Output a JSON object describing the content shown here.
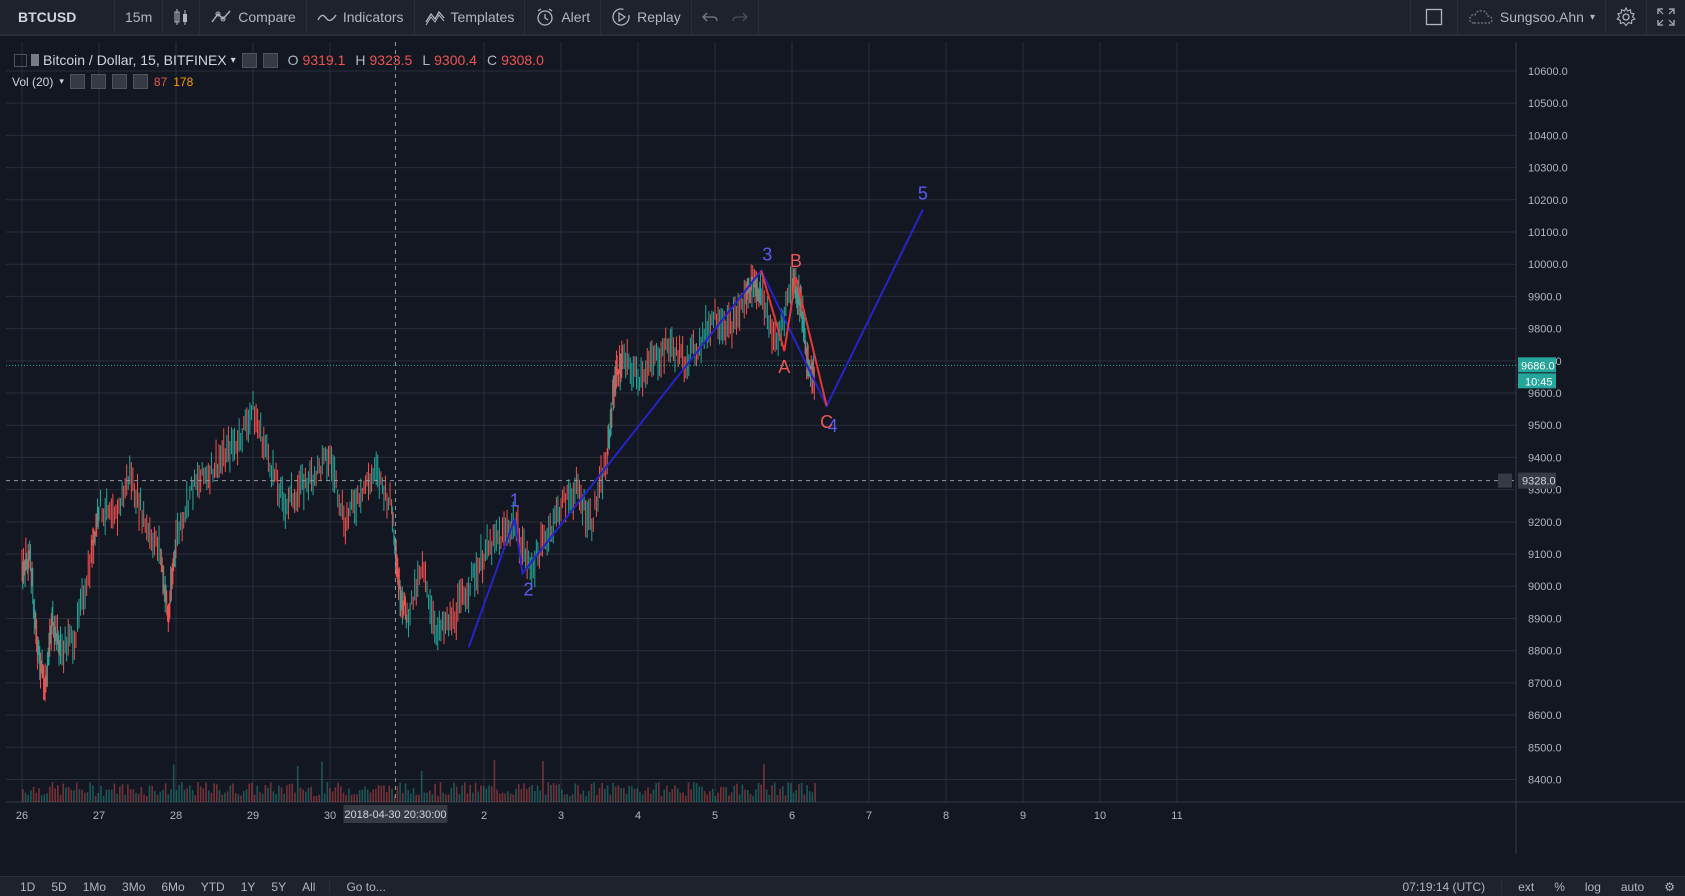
{
  "toolbar": {
    "symbol": "BTCUSD",
    "interval": "15m",
    "compare": "Compare",
    "indicators": "Indicators",
    "templates": "Templates",
    "alert": "Alert",
    "replay": "Replay",
    "user": "Sungsoo.Ahn"
  },
  "legend": {
    "title": "Bitcoin / Dollar, 15, BITFINEX",
    "o_label": "O",
    "o_value": "9319.1",
    "h_label": "H",
    "h_value": "9323.5",
    "l_label": "L",
    "l_value": "9300.4",
    "c_label": "C",
    "c_value": "9308.0"
  },
  "volume": {
    "label": "Vol (20)",
    "value": "87",
    "ma": "178"
  },
  "chart_data": {
    "type": "line",
    "price_ticks": [
      "10600.0",
      "10500.0",
      "10400.0",
      "10300.0",
      "10200.0",
      "10100.0",
      "10000.0",
      "9900.0",
      "9800.0",
      "9700.0",
      "9600.0",
      "9500.0",
      "9400.0",
      "9300.0",
      "9200.0",
      "9100.0",
      "9000.0",
      "8900.0",
      "8800.0",
      "8700.0",
      "8600.0",
      "8500.0",
      "8400.0"
    ],
    "date_ticks": [
      "26",
      "27",
      "28",
      "29",
      "30",
      "2",
      "3",
      "4",
      "5",
      "6",
      "7",
      "8",
      "9",
      "10",
      "11"
    ],
    "crosshair_date": "2018-04-30 20:30:00",
    "last_price": "9686.0",
    "countdown": "10:45",
    "crosshair_price": "9328.0",
    "price_path": [
      [
        26,
        9050
      ],
      [
        26.1,
        9100
      ],
      [
        26.2,
        8800
      ],
      [
        26.3,
        8700
      ],
      [
        26.4,
        8900
      ],
      [
        26.5,
        8800
      ],
      [
        26.7,
        8850
      ],
      [
        26.9,
        9100
      ],
      [
        27.0,
        9250
      ],
      [
        27.2,
        9200
      ],
      [
        27.4,
        9350
      ],
      [
        27.6,
        9200
      ],
      [
        27.8,
        9100
      ],
      [
        27.9,
        8900
      ],
      [
        28.0,
        9150
      ],
      [
        28.2,
        9300
      ],
      [
        28.4,
        9350
      ],
      [
        28.6,
        9400
      ],
      [
        28.8,
        9450
      ],
      [
        29.0,
        9550
      ],
      [
        29.2,
        9400
      ],
      [
        29.4,
        9250
      ],
      [
        29.6,
        9300
      ],
      [
        29.8,
        9350
      ],
      [
        30.0,
        9400
      ],
      [
        30.2,
        9200
      ],
      [
        30.4,
        9300
      ],
      [
        30.6,
        9350
      ],
      [
        30.8,
        9250
      ],
      [
        30.9,
        9000
      ],
      [
        31.0,
        8900
      ],
      [
        31.2,
        9050
      ],
      [
        31.4,
        8850
      ],
      [
        31.6,
        8900
      ],
      [
        31.8,
        9000
      ],
      [
        32.0,
        9100
      ],
      [
        32.2,
        9150
      ],
      [
        32.4,
        9200
      ],
      [
        32.6,
        9050
      ],
      [
        32.8,
        9150
      ],
      [
        33.0,
        9250
      ],
      [
        33.2,
        9300
      ],
      [
        33.4,
        9200
      ],
      [
        33.6,
        9400
      ],
      [
        33.7,
        9650
      ],
      [
        33.8,
        9700
      ],
      [
        34.0,
        9650
      ],
      [
        34.2,
        9700
      ],
      [
        34.4,
        9750
      ],
      [
        34.6,
        9700
      ],
      [
        34.8,
        9750
      ],
      [
        35.0,
        9850
      ],
      [
        35.2,
        9800
      ],
      [
        35.4,
        9900
      ],
      [
        35.5,
        9950
      ],
      [
        35.6,
        9900
      ],
      [
        35.8,
        9750
      ],
      [
        36.0,
        9950
      ],
      [
        36.1,
        9900
      ],
      [
        36.2,
        9700
      ],
      [
        36.3,
        9650
      ]
    ],
    "series": [
      {
        "color": "#2424c8",
        "labels": [
          "1",
          "2",
          "3",
          "4",
          "5"
        ],
        "points": [
          [
            31.8,
            8810
          ],
          [
            32.4,
            9210
          ],
          [
            32.5,
            9040
          ],
          [
            35.6,
            9980
          ],
          [
            36.45,
            9560
          ],
          [
            37.7,
            10170
          ]
        ]
      },
      {
        "color": "#e53935",
        "labels": [
          "A",
          "B",
          "C"
        ],
        "points": [
          [
            35.6,
            9980
          ],
          [
            35.9,
            9730
          ],
          [
            36.05,
            9960
          ],
          [
            36.45,
            9560
          ]
        ]
      }
    ],
    "y_range": [
      8330,
      10690
    ],
    "x_range": [
      25.85,
      43.0
    ]
  },
  "bottombar": {
    "ranges": [
      "1D",
      "5D",
      "1Mo",
      "3Mo",
      "6Mo",
      "YTD",
      "1Y",
      "5Y",
      "All"
    ],
    "goto": "Go to...",
    "clock": "07:19:14 (UTC)",
    "ext": "ext",
    "pct": "%",
    "log": "log",
    "auto": "auto"
  },
  "colors": {
    "bg": "#131722",
    "grid": "#2a2e39",
    "up": "#26a69a",
    "down": "#ef5350",
    "wave_blue": "#2424c8",
    "wave_red": "#e53935",
    "price_line": "#26a69a"
  }
}
